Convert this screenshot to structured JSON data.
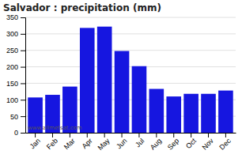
{
  "chart_data": {
    "type": "bar",
    "title": "Salvador : precipitation (mm)",
    "categories": [
      "Jan",
      "Feb",
      "Mar",
      "Apr",
      "May",
      "Jun",
      "Jul",
      "Aug",
      "Sep",
      "Oct",
      "Nov",
      "Dec"
    ],
    "values": [
      107,
      115,
      140,
      318,
      322,
      248,
      202,
      133,
      110,
      118,
      118,
      128
    ],
    "color": "#1616e0",
    "ylim": [
      0,
      350
    ],
    "yticks": [
      0,
      50,
      100,
      150,
      200,
      250,
      300,
      350
    ],
    "grid": true,
    "annotations": [
      {
        "text": "www.allmetsat.com"
      }
    ]
  }
}
